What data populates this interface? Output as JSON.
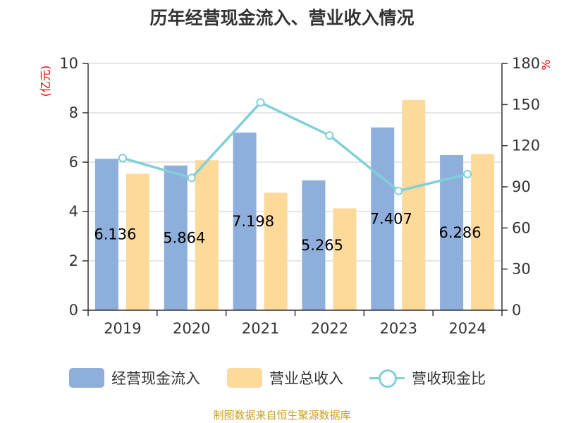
{
  "chart_data": {
    "type": "bar",
    "title": "历年经营现金流入、营业收入情况",
    "categories": [
      "2019",
      "2020",
      "2021",
      "2022",
      "2023",
      "2024"
    ],
    "series": [
      {
        "name": "经营现金流入",
        "kind": "bar",
        "axis": "left",
        "color": "#8eaedc",
        "values": [
          6.136,
          5.864,
          7.198,
          5.265,
          7.407,
          6.286
        ],
        "labels": [
          "6.136",
          "5.864",
          "7.198",
          "5.265",
          "7.407",
          "6.286"
        ]
      },
      {
        "name": "营业总收入",
        "kind": "bar",
        "axis": "left",
        "color": "#fdd99a",
        "values": [
          5.53,
          6.08,
          4.76,
          4.13,
          8.52,
          6.33
        ]
      },
      {
        "name": "营收现金比",
        "kind": "line",
        "axis": "right",
        "color": "#80d0d8",
        "values": [
          111,
          96.5,
          151.5,
          127.5,
          87,
          99.3
        ]
      }
    ],
    "ylabel_left": "(亿元)",
    "ylabel_right": "%",
    "ylim_left": [
      0,
      10
    ],
    "ylim_right": [
      0,
      180
    ],
    "yticks_left": [
      "0",
      "2",
      "4",
      "6",
      "8",
      "10"
    ],
    "yticks_right": [
      "0",
      "30",
      "60",
      "90",
      "120",
      "150",
      "180"
    ],
    "grid": true,
    "legend_position": "bottom"
  },
  "source": "制图数据来自恒生聚源数据库"
}
